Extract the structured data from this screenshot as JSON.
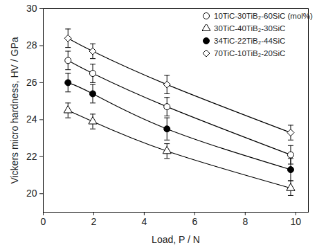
{
  "chart_data": {
    "type": "scatter",
    "x_label": "Load, P / N",
    "y_label": "Vickers micro hardness, HV / GPa",
    "xlim": [
      0,
      10.5
    ],
    "xticks": [
      0,
      2,
      4,
      6,
      8,
      10
    ],
    "ylim": [
      19,
      30
    ],
    "yticks": [
      20,
      22,
      24,
      26,
      28,
      30
    ],
    "legend": "top-right",
    "x": [
      0.98,
      1.96,
      4.9,
      9.8
    ],
    "series": [
      {
        "name": "10TiC-30TiB₂-60SiC (mol%)",
        "color": "#000000",
        "marker": "circle-open",
        "values": [
          27.2,
          26.5,
          24.7,
          22.1
        ],
        "errors": [
          0.5,
          0.5,
          0.5,
          0.5
        ]
      },
      {
        "name": "30TiC-40TiB₂-30SiC",
        "color": "#000000",
        "marker": "triangle-open",
        "values": [
          24.5,
          23.9,
          22.3,
          20.3
        ],
        "errors": [
          0.4,
          0.4,
          0.4,
          0.4
        ]
      },
      {
        "name": "34TiC-22TiB₂-44SiC",
        "color": "#000000",
        "marker": "circle",
        "values": [
          26.0,
          25.4,
          23.5,
          21.3
        ],
        "errors": [
          0.5,
          0.5,
          0.6,
          0.6
        ]
      },
      {
        "name": "70TiC-10TiB₂-20SiC",
        "color": "#000000",
        "marker": "diamond-open",
        "values": [
          28.4,
          27.7,
          25.9,
          23.3
        ],
        "errors": [
          0.5,
          0.4,
          0.5,
          0.4
        ]
      }
    ]
  }
}
